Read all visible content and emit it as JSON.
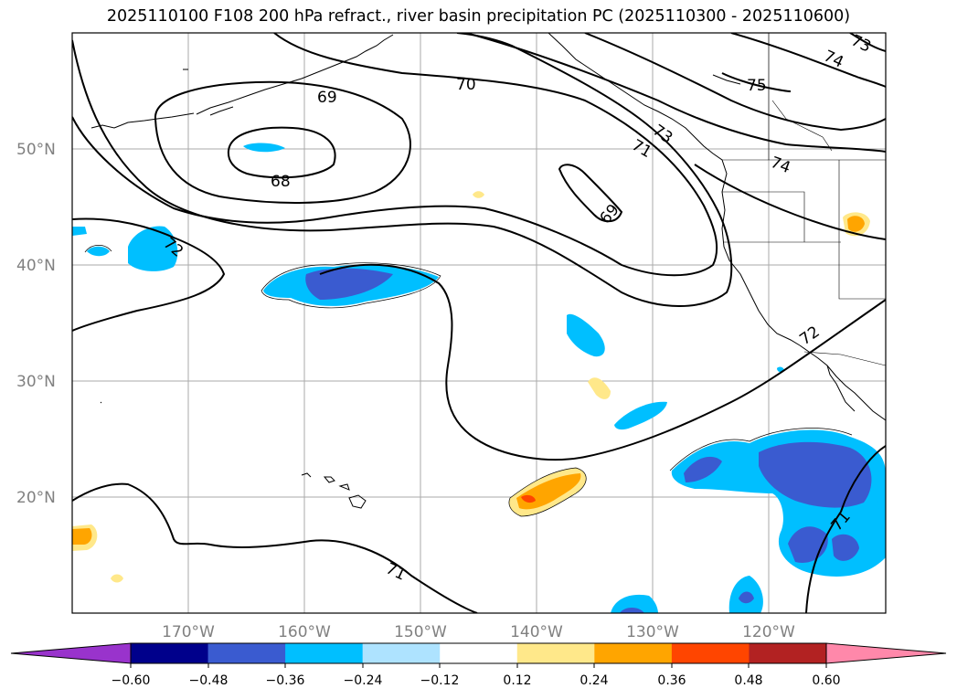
{
  "title": "2025110100 F108 200 hPa refract., river basin precipitation PC (2025110300 - 2025110600)",
  "map": {
    "lon_range": [
      -180,
      -110
    ],
    "lat_range": [
      10,
      60
    ],
    "lat_labels": [
      {
        "lat": 50,
        "text": "50°N"
      },
      {
        "lat": 40,
        "text": "40°N"
      },
      {
        "lat": 30,
        "text": "30°N"
      },
      {
        "lat": 20,
        "text": "20°N"
      }
    ],
    "lon_labels": [
      {
        "lon": -170,
        "text": "170°W"
      },
      {
        "lon": -160,
        "text": "160°W"
      },
      {
        "lon": -150,
        "text": "150°W"
      },
      {
        "lon": -140,
        "text": "140°W"
      },
      {
        "lon": -130,
        "text": "130°W"
      },
      {
        "lon": -120,
        "text": "120°W"
      }
    ],
    "contour_labels": [
      "68",
      "69",
      "69",
      "70",
      "71",
      "71",
      "71",
      "72",
      "72",
      "73",
      "73",
      "74",
      "74",
      "75"
    ]
  },
  "colorbar": {
    "ticks": [
      "−0.60",
      "−0.48",
      "−0.36",
      "−0.24",
      "−0.12",
      "0.12",
      "0.24",
      "0.36",
      "0.48",
      "0.60"
    ],
    "colors": [
      "#9933cc",
      "#00008b",
      "#3a5bd0",
      "#00bfff",
      "#aee3ff",
      "#ffffff",
      "#ffe88a",
      "#ffa500",
      "#ff4500",
      "#b22222",
      "#ff88aa"
    ]
  }
}
